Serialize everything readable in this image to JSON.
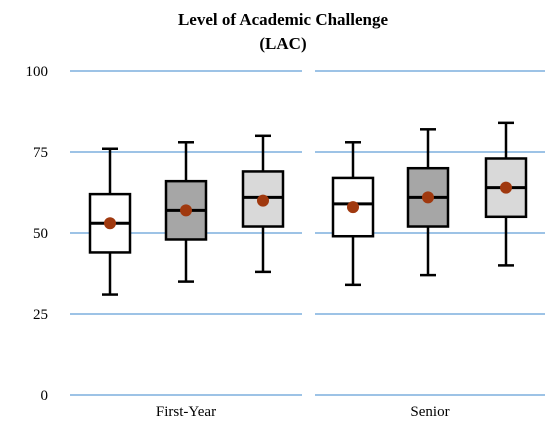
{
  "chart_data": {
    "type": "box",
    "title": "Level of Academic Challenge",
    "subtitle": "(LAC)",
    "ylim": [
      0,
      100
    ],
    "yticks": [
      0,
      25,
      50,
      75,
      100
    ],
    "grid": true,
    "categories": [
      "First-Year",
      "Senior"
    ],
    "series_fill_colors": [
      "#ffffff",
      "#a6a6a6",
      "#d9d9d9"
    ],
    "mean_marker_color": "#a0390f",
    "gridline_color": "#9dc3e6",
    "groups": [
      {
        "category": "First-Year",
        "boxes": [
          {
            "min": 31,
            "q1": 44,
            "median": 53,
            "q3": 62,
            "max": 76,
            "mean": 53
          },
          {
            "min": 35,
            "q1": 48,
            "median": 57,
            "q3": 66,
            "max": 78,
            "mean": 57
          },
          {
            "min": 38,
            "q1": 52,
            "median": 61,
            "q3": 69,
            "max": 80,
            "mean": 60
          }
        ]
      },
      {
        "category": "Senior",
        "boxes": [
          {
            "min": 34,
            "q1": 49,
            "median": 59,
            "q3": 67,
            "max": 78,
            "mean": 58
          },
          {
            "min": 37,
            "q1": 52,
            "median": 61,
            "q3": 70,
            "max": 82,
            "mean": 61
          },
          {
            "min": 40,
            "q1": 55,
            "median": 64,
            "q3": 73,
            "max": 84,
            "mean": 64
          }
        ]
      }
    ]
  }
}
